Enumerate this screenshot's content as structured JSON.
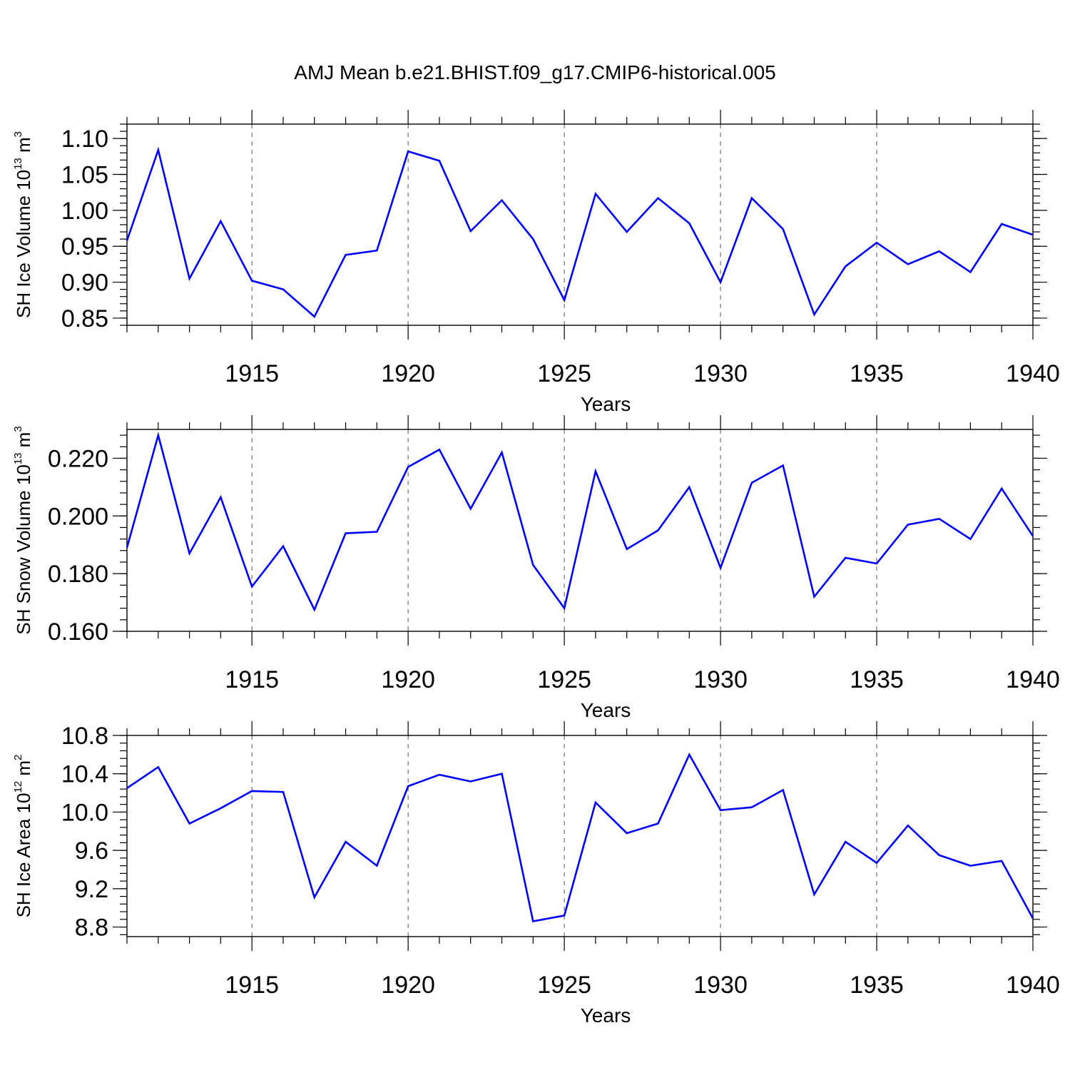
{
  "title": "AMJ Mean b.e21.BHIST.f09_g17.CMIP6-historical.005",
  "colors": {
    "line": "#0000ff",
    "axis": "#000000",
    "grid": "#555555"
  },
  "chart_data": [
    {
      "type": "line",
      "ylabel_main": "SH Ice Volume 10",
      "ylabel_exp": "13",
      "ylabel_unit": " m",
      "ylabel_unit_exp": "3",
      "xlabel": "Years",
      "xlim": [
        1911,
        1940
      ],
      "ylim": [
        0.84,
        1.12
      ],
      "x_ticks": [
        1915,
        1920,
        1925,
        1930,
        1935,
        1940
      ],
      "x_tick_labels": [
        "1915",
        "1920",
        "1925",
        "1930",
        "1935",
        "1940"
      ],
      "y_ticks": [
        0.85,
        0.9,
        0.95,
        1.0,
        1.05,
        1.1
      ],
      "y_tick_labels": [
        "0.85",
        "0.90",
        "0.95",
        "1.00",
        "1.05",
        "1.10"
      ],
      "y_minor_step": 0.01,
      "series": [
        {
          "name": "SH Ice Volume",
          "x": [
            1911,
            1912,
            1913,
            1914,
            1915,
            1916,
            1917,
            1918,
            1919,
            1920,
            1921,
            1922,
            1923,
            1924,
            1925,
            1926,
            1927,
            1928,
            1929,
            1930,
            1931,
            1932,
            1933,
            1934,
            1935,
            1936,
            1937,
            1938,
            1939,
            1940
          ],
          "values": [
            0.958,
            1.084,
            0.905,
            0.985,
            0.902,
            0.89,
            0.852,
            0.938,
            0.944,
            1.082,
            1.069,
            0.971,
            1.014,
            0.96,
            0.875,
            1.023,
            0.97,
            1.017,
            0.982,
            0.9,
            1.017,
            0.974,
            0.855,
            0.922,
            0.955,
            0.925,
            0.943,
            0.914,
            0.981,
            0.966
          ]
        }
      ]
    },
    {
      "type": "line",
      "ylabel_main": "SH Snow Volume 10",
      "ylabel_exp": "13",
      "ylabel_unit": " m",
      "ylabel_unit_exp": "3",
      "xlabel": "Years",
      "xlim": [
        1911,
        1940
      ],
      "ylim": [
        0.16,
        0.23
      ],
      "x_ticks": [
        1915,
        1920,
        1925,
        1930,
        1935,
        1940
      ],
      "x_tick_labels": [
        "1915",
        "1920",
        "1925",
        "1930",
        "1935",
        "1940"
      ],
      "y_ticks": [
        0.16,
        0.18,
        0.2,
        0.22
      ],
      "y_tick_labels": [
        "0.160",
        "0.180",
        "0.200",
        "0.220"
      ],
      "y_minor_step": 0.004,
      "series": [
        {
          "name": "SH Snow Volume",
          "x": [
            1911,
            1912,
            1913,
            1914,
            1915,
            1916,
            1917,
            1918,
            1919,
            1920,
            1921,
            1922,
            1923,
            1924,
            1925,
            1926,
            1927,
            1928,
            1929,
            1930,
            1931,
            1932,
            1933,
            1934,
            1935,
            1936,
            1937,
            1938,
            1939,
            1940
          ],
          "values": [
            0.189,
            0.228,
            0.187,
            0.2065,
            0.1755,
            0.1895,
            0.1675,
            0.194,
            0.1945,
            0.217,
            0.223,
            0.2025,
            0.222,
            0.183,
            0.168,
            0.2155,
            0.1885,
            0.195,
            0.21,
            0.182,
            0.2115,
            0.2175,
            0.172,
            0.1855,
            0.1835,
            0.197,
            0.199,
            0.192,
            0.2095,
            0.193
          ]
        }
      ]
    },
    {
      "type": "line",
      "ylabel_main": "SH Ice Area 10",
      "ylabel_exp": "12",
      "ylabel_unit": " m",
      "ylabel_unit_exp": "2",
      "xlabel": "Years",
      "xlim": [
        1911,
        1940
      ],
      "ylim": [
        8.7,
        10.8
      ],
      "x_ticks": [
        1915,
        1920,
        1925,
        1930,
        1935,
        1940
      ],
      "x_tick_labels": [
        "1915",
        "1920",
        "1925",
        "1930",
        "1935",
        "1940"
      ],
      "y_ticks": [
        8.8,
        9.2,
        9.6,
        10.0,
        10.4,
        10.8
      ],
      "y_tick_labels": [
        "8.8",
        "9.2",
        "9.6",
        "10.0",
        "10.4",
        "10.8"
      ],
      "y_minor_step": 0.08,
      "series": [
        {
          "name": "SH Ice Area",
          "x": [
            1911,
            1912,
            1913,
            1914,
            1915,
            1916,
            1917,
            1918,
            1919,
            1920,
            1921,
            1922,
            1923,
            1924,
            1925,
            1926,
            1927,
            1928,
            1929,
            1930,
            1931,
            1932,
            1933,
            1934,
            1935,
            1936,
            1937,
            1938,
            1939,
            1940
          ],
          "values": [
            10.25,
            10.47,
            9.88,
            10.04,
            10.22,
            10.21,
            9.11,
            9.69,
            9.44,
            10.27,
            10.39,
            10.32,
            10.4,
            8.86,
            8.92,
            10.1,
            9.78,
            9.88,
            10.6,
            10.02,
            10.05,
            10.23,
            9.14,
            9.69,
            9.47,
            9.86,
            9.55,
            9.44,
            9.49,
            8.89
          ]
        }
      ]
    }
  ]
}
